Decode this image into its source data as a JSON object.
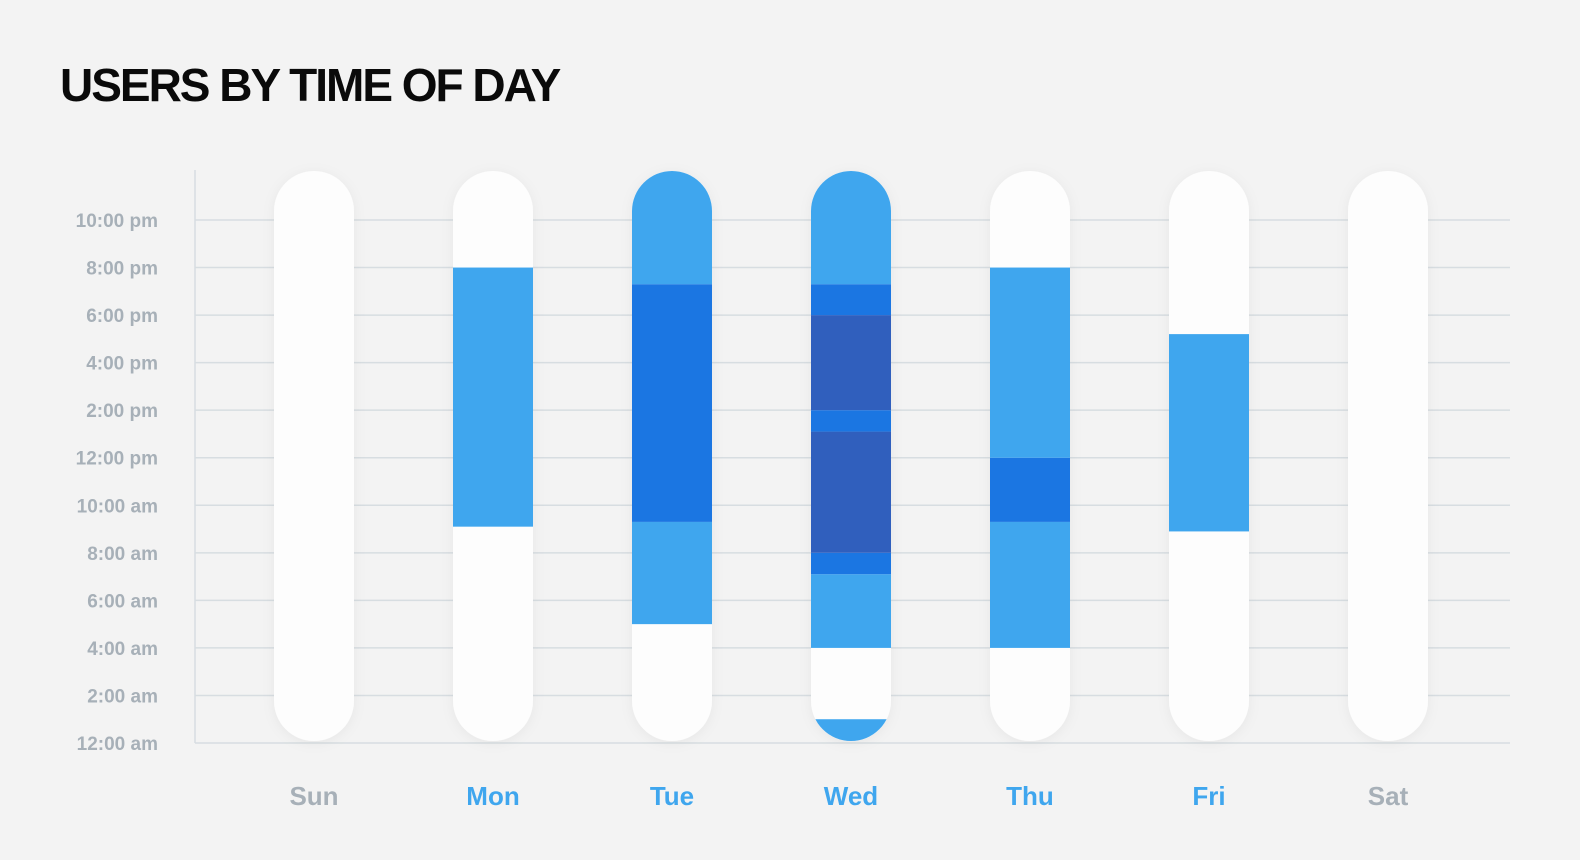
{
  "title": "USERS BY TIME OF DAY",
  "colors": {
    "background": "#f3f3f3",
    "pill": "#fdfdfd",
    "light_blue": "#3fa6ee",
    "mid_blue": "#1b76e2",
    "dark_blue": "#305fbd",
    "grid": "#d7dde1",
    "axis_label": "#a7b0b8",
    "active_day": "#3fa6ee",
    "inactive_day": "#a7b0b8"
  },
  "chart_data": {
    "type": "heatmap",
    "title": "USERS BY TIME OF DAY",
    "y_unit": "hour of day",
    "ylim": [
      0,
      24
    ],
    "y_ticks": [
      {
        "hour": 0,
        "label": "12:00 am"
      },
      {
        "hour": 2,
        "label": "2:00 am"
      },
      {
        "hour": 4,
        "label": "4:00 am"
      },
      {
        "hour": 6,
        "label": "6:00 am"
      },
      {
        "hour": 8,
        "label": "8:00 am"
      },
      {
        "hour": 10,
        "label": "10:00 am"
      },
      {
        "hour": 12,
        "label": "12:00 pm"
      },
      {
        "hour": 14,
        "label": "2:00 pm"
      },
      {
        "hour": 16,
        "label": "4:00 pm"
      },
      {
        "hour": 18,
        "label": "6:00 pm"
      },
      {
        "hour": 20,
        "label": "8:00 pm"
      },
      {
        "hour": 22,
        "label": "10:00 pm"
      }
    ],
    "grid": true,
    "days": [
      {
        "label": "Sun",
        "active": false,
        "segments": []
      },
      {
        "label": "Mon",
        "active": true,
        "segments": [
          {
            "start": 9.1,
            "end": 20,
            "level": "light"
          }
        ]
      },
      {
        "label": "Tue",
        "active": true,
        "segments": [
          {
            "start": 5,
            "end": 9.3,
            "level": "light"
          },
          {
            "start": 9.3,
            "end": 19.3,
            "level": "mid"
          },
          {
            "start": 19.3,
            "end": 24,
            "level": "light"
          }
        ]
      },
      {
        "label": "Wed",
        "active": true,
        "segments": [
          {
            "start": 0,
            "end": 1,
            "level": "light"
          },
          {
            "start": 4,
            "end": 7.1,
            "level": "light"
          },
          {
            "start": 7.1,
            "end": 8,
            "level": "mid"
          },
          {
            "start": 8,
            "end": 13.1,
            "level": "dark"
          },
          {
            "start": 13.1,
            "end": 14,
            "level": "mid"
          },
          {
            "start": 14,
            "end": 18,
            "level": "dark"
          },
          {
            "start": 18,
            "end": 19.3,
            "level": "mid"
          },
          {
            "start": 19.3,
            "end": 24,
            "level": "light"
          }
        ]
      },
      {
        "label": "Thu",
        "active": true,
        "segments": [
          {
            "start": 4,
            "end": 9.3,
            "level": "light"
          },
          {
            "start": 9.3,
            "end": 12,
            "level": "mid"
          },
          {
            "start": 12,
            "end": 20,
            "level": "light"
          }
        ]
      },
      {
        "label": "Fri",
        "active": true,
        "segments": [
          {
            "start": 8.9,
            "end": 17.2,
            "level": "light"
          }
        ]
      },
      {
        "label": "Sat",
        "active": false,
        "segments": []
      }
    ]
  }
}
